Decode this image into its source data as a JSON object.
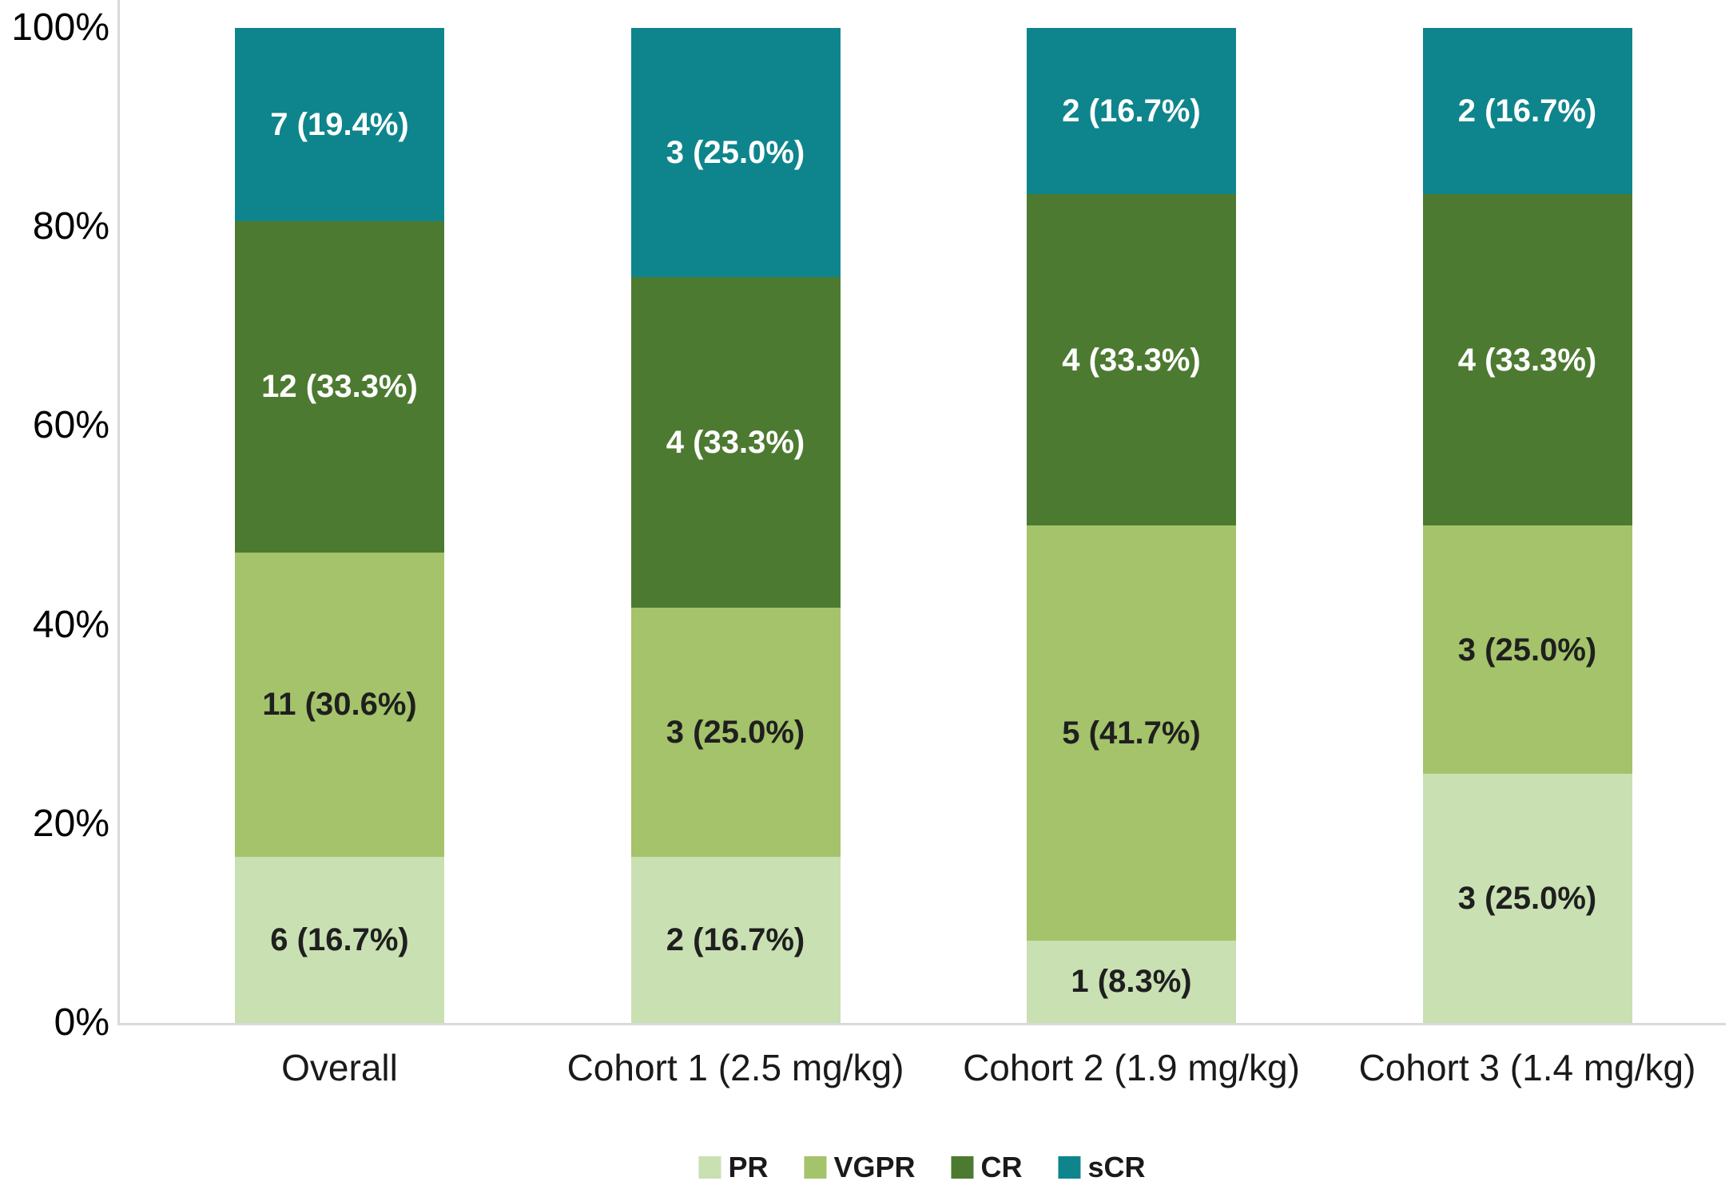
{
  "figure": {
    "background": "#ffffff"
  },
  "axes": {
    "axis_color": "#d9d9d9",
    "tick_color": "#000000",
    "y_ticks": [
      {
        "label": "100%",
        "value": 100
      },
      {
        "label": "80%",
        "value": 80
      },
      {
        "label": "60%",
        "value": 60
      },
      {
        "label": "40%",
        "value": 40
      },
      {
        "label": "20%",
        "value": 20
      },
      {
        "label": "0%",
        "value": 0
      }
    ]
  },
  "chart_data": {
    "type": "bar",
    "subtype": "stacked-100-percent-column",
    "title": "",
    "xlabel": "",
    "ylabel": "",
    "ylim": [
      0,
      100
    ],
    "grid": false,
    "categories": [
      "Overall",
      "Cohort 1 (2.5 mg/kg)",
      "Cohort 2 (1.9 mg/kg)",
      "Cohort 3 (1.4 mg/kg)"
    ],
    "series": [
      {
        "name": "PR",
        "color": "#c9e0b3",
        "label_text_color": "#1f1f1f",
        "counts": [
          6,
          2,
          1,
          3
        ],
        "percents": [
          16.7,
          16.7,
          8.3,
          25.0
        ],
        "labels": [
          "6 (16.7%)",
          "2 (16.7%)",
          "1 (8.3%)",
          "3 (25.0%)"
        ]
      },
      {
        "name": "VGPR",
        "color": "#a4c36a",
        "label_text_color": "#1f1f1f",
        "counts": [
          11,
          3,
          5,
          3
        ],
        "percents": [
          30.6,
          25.0,
          41.7,
          25.0
        ],
        "labels": [
          "11 (30.6%)",
          "3 (25.0%)",
          "5 (41.7%)",
          "3 (25.0%)"
        ]
      },
      {
        "name": "CR",
        "color": "#4d7a31",
        "label_text_color": "#ffffff",
        "counts": [
          12,
          4,
          4,
          4
        ],
        "percents": [
          33.3,
          33.3,
          33.3,
          33.3
        ],
        "labels": [
          "12 (33.3%)",
          "4 (33.3%)",
          "4 (33.3%)",
          "4 (33.3%)"
        ]
      },
      {
        "name": "sCR",
        "color": "#0e858c",
        "label_text_color": "#ffffff",
        "counts": [
          7,
          3,
          2,
          2
        ],
        "percents": [
          19.4,
          25.0,
          16.7,
          16.7
        ],
        "labels": [
          "7 (19.4%)",
          "3 (25.0%)",
          "2 (16.7%)",
          "2 (16.7%)"
        ]
      }
    ],
    "legend": {
      "position": "bottom",
      "entries": [
        "PR",
        "VGPR",
        "CR",
        "sCR"
      ]
    }
  }
}
